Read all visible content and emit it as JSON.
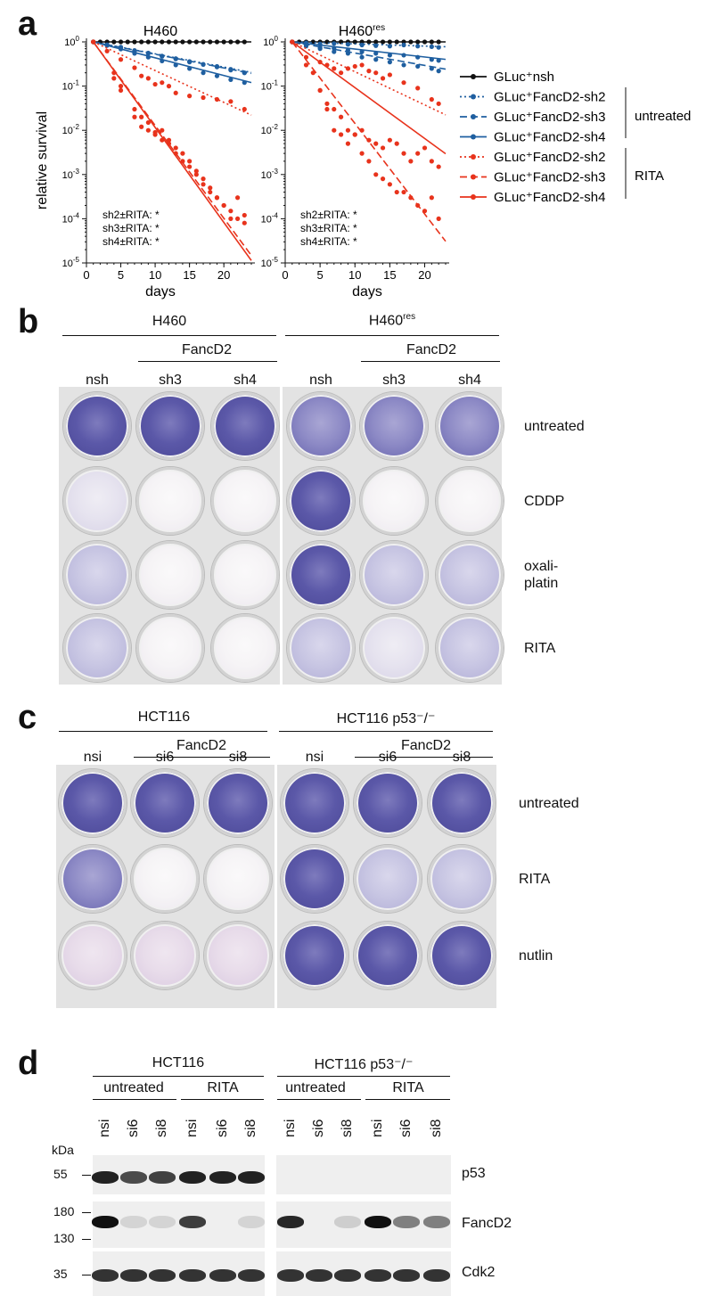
{
  "panels": {
    "a": "a",
    "b": "b",
    "c": "c",
    "d": "d"
  },
  "colors": {
    "black": "#111111",
    "blue": "#1f5fa0",
    "red": "#e8331c",
    "stain_dark": "#5a56a6",
    "stain_mid": "#8f8cc4",
    "stain_light": "#c9c7e2",
    "stain_faint": "#e6e3ee"
  },
  "panel_a": {
    "ylabel": "relative survival",
    "xlabel": "days",
    "yticks": [
      "10^0",
      "10^-1",
      "10^-2",
      "10^-3",
      "10^-4",
      "10^-5"
    ],
    "xticks": [
      "0",
      "5",
      "10",
      "15",
      "20"
    ],
    "stats": [
      "sh2±RITA: *",
      "sh3±RITA: *",
      "sh4±RITA: *"
    ],
    "legend": {
      "nsh": "GLuc⁺nsh",
      "untreated_sh2": "GLuc⁺FancD2-sh2",
      "untreated_sh3": "GLuc⁺FancD2-sh3",
      "untreated_sh4": "GLuc⁺FancD2-sh4",
      "rita_sh2": "GLuc⁺FancD2-sh2",
      "rita_sh3": "GLuc⁺FancD2-sh3",
      "rita_sh4": "GLuc⁺FancD2-sh4",
      "group_untreated": "untreated",
      "group_rita": "RITA"
    }
  },
  "chart_data": [
    {
      "type": "scatter",
      "title": "H460",
      "xlabel": "days",
      "ylabel": "relative survival",
      "xlim": [
        0,
        24
      ],
      "ylim": [
        1e-05,
        1
      ],
      "yscale": "log",
      "series": [
        {
          "name": "GLuc⁺nsh",
          "color": "#111111",
          "style": "solid",
          "slope": 0.0,
          "x": [
            1,
            2,
            3,
            4,
            5,
            6,
            7,
            8,
            9,
            10,
            11,
            12,
            13,
            14,
            15,
            16,
            17,
            18,
            19,
            20,
            21,
            22,
            23
          ],
          "y": [
            1,
            1,
            1,
            1,
            1,
            1,
            1,
            1,
            1,
            1,
            1,
            1,
            1,
            1,
            1,
            1,
            1,
            1,
            1,
            1,
            1,
            1,
            1
          ]
        },
        {
          "name": "GLuc⁺FancD2-sh2 untreated",
          "color": "#1f5fa0",
          "style": "dotted",
          "slope": -0.03,
          "x": [
            1,
            3,
            5,
            7,
            9,
            11,
            13,
            15,
            17,
            19,
            21,
            23
          ],
          "y": [
            1,
            0.85,
            0.76,
            0.62,
            0.56,
            0.48,
            0.42,
            0.36,
            0.31,
            0.28,
            0.24,
            0.2
          ]
        },
        {
          "name": "GLuc⁺FancD2-sh3 untreated",
          "color": "#1f5fa0",
          "style": "dashed",
          "slope": -0.031,
          "x": [
            1,
            3,
            5,
            7,
            9,
            11,
            13,
            15,
            17,
            19,
            21,
            23
          ],
          "y": [
            1,
            0.86,
            0.74,
            0.64,
            0.55,
            0.47,
            0.41,
            0.35,
            0.31,
            0.27,
            0.23,
            0.2
          ]
        },
        {
          "name": "GLuc⁺FancD2-sh4 untreated",
          "color": "#1f5fa0",
          "style": "solid",
          "slope": -0.04,
          "x": [
            1,
            3,
            5,
            7,
            9,
            11,
            13,
            15,
            17,
            19,
            21,
            23
          ],
          "y": [
            1,
            0.83,
            0.69,
            0.55,
            0.45,
            0.37,
            0.3,
            0.25,
            0.2,
            0.17,
            0.14,
            0.12
          ]
        },
        {
          "name": "GLuc⁺FancD2-sh2 RITA",
          "color": "#e8331c",
          "style": "dotted",
          "slope": -0.072,
          "x": [
            1,
            3,
            5,
            7,
            8,
            9,
            10,
            11,
            12,
            13,
            15,
            17,
            19,
            21,
            23
          ],
          "y": [
            1,
            0.62,
            0.4,
            0.26,
            0.17,
            0.15,
            0.11,
            0.12,
            0.1,
            0.07,
            0.06,
            0.055,
            0.05,
            0.045,
            0.03
          ]
        },
        {
          "name": "GLuc⁺FancD2-sh3 RITA",
          "color": "#e8331c",
          "style": "dashed",
          "slope": -0.21,
          "x": [
            1,
            4,
            5,
            7,
            8,
            9,
            10,
            11,
            12,
            13,
            14,
            15,
            16,
            17,
            18,
            19,
            20,
            21,
            22,
            23
          ],
          "y": [
            1,
            0.2,
            0.1,
            0.02,
            0.012,
            0.015,
            0.008,
            0.01,
            0.006,
            0.004,
            0.003,
            0.002,
            0.0012,
            0.0008,
            0.0005,
            0.0003,
            0.0002,
            0.00015,
            0.0001,
            0.00012
          ]
        },
        {
          "name": "GLuc⁺FancD2-sh4 RITA",
          "color": "#e8331c",
          "style": "solid",
          "slope": -0.215,
          "x": [
            1,
            4,
            5,
            7,
            8,
            9,
            10,
            11,
            12,
            13,
            14,
            15,
            16,
            17,
            18,
            19,
            20,
            21,
            22,
            23
          ],
          "y": [
            1,
            0.15,
            0.08,
            0.03,
            0.02,
            0.01,
            0.009,
            0.006,
            0.005,
            0.003,
            0.002,
            0.0015,
            0.001,
            0.0006,
            0.0004,
            0.0003,
            0.0002,
            0.0001,
            0.0003,
            8e-05
          ]
        }
      ]
    },
    {
      "type": "scatter",
      "title": "H460res",
      "xlabel": "days",
      "xlim": [
        0,
        23
      ],
      "ylim": [
        1e-05,
        1
      ],
      "yscale": "log",
      "series": [
        {
          "name": "GLuc⁺nsh",
          "color": "#111111",
          "style": "solid",
          "slope": 0.0,
          "x": [
            1,
            2,
            3,
            4,
            5,
            6,
            7,
            8,
            9,
            10,
            11,
            12,
            13,
            14,
            15,
            16,
            17,
            18,
            19,
            20,
            21,
            22
          ],
          "y": [
            1,
            1,
            1,
            1,
            1,
            1,
            1,
            1,
            1,
            1,
            1,
            1,
            1,
            1,
            1,
            1,
            1,
            1,
            1,
            1,
            1,
            1
          ]
        },
        {
          "name": "GLuc⁺FancD2-sh2 untreated",
          "color": "#1f5fa0",
          "style": "dotted",
          "slope": -0.005,
          "x": [
            1,
            3,
            5,
            7,
            9,
            11,
            13,
            15,
            17,
            19,
            21,
            22
          ],
          "y": [
            1,
            0.95,
            0.9,
            0.92,
            0.88,
            0.85,
            0.82,
            0.8,
            0.85,
            0.8,
            0.78,
            0.75
          ]
        },
        {
          "name": "GLuc⁺FancD2-sh3 untreated",
          "color": "#1f5fa0",
          "style": "dashed",
          "slope": -0.028,
          "x": [
            1,
            3,
            5,
            7,
            9,
            11,
            13,
            15,
            17,
            19,
            21,
            22
          ],
          "y": [
            1,
            0.8,
            0.7,
            0.6,
            0.55,
            0.45,
            0.4,
            0.35,
            0.3,
            0.28,
            0.25,
            0.22
          ]
        },
        {
          "name": "GLuc⁺FancD2-sh4 untreated",
          "color": "#1f5fa0",
          "style": "solid",
          "slope": -0.018,
          "x": [
            1,
            3,
            5,
            7,
            9,
            11,
            13,
            15,
            17,
            19,
            21,
            22
          ],
          "y": [
            1,
            0.85,
            0.75,
            0.72,
            0.65,
            0.6,
            0.55,
            0.5,
            0.5,
            0.45,
            0.4,
            0.38
          ]
        },
        {
          "name": "GLuc⁺FancD2-sh2 RITA",
          "color": "#e8331c",
          "style": "dotted",
          "slope": -0.075,
          "x": [
            1,
            3,
            5,
            6,
            7,
            8,
            9,
            10,
            11,
            12,
            13,
            14,
            15,
            17,
            19,
            21,
            22
          ],
          "y": [
            1,
            0.45,
            0.35,
            0.3,
            0.25,
            0.2,
            0.25,
            0.28,
            0.3,
            0.22,
            0.2,
            0.15,
            0.18,
            0.12,
            0.09,
            0.05,
            0.04
          ]
        },
        {
          "name": "GLuc⁺FancD2-sh3 RITA",
          "color": "#e8331c",
          "style": "dashed",
          "slope": -0.205,
          "x": [
            1,
            4,
            5,
            6,
            7,
            8,
            9,
            10,
            11,
            12,
            13,
            14,
            15,
            16,
            17,
            18,
            19,
            20,
            21,
            22
          ],
          "y": [
            1,
            0.2,
            0.08,
            0.03,
            0.01,
            0.008,
            0.005,
            0.008,
            0.003,
            0.002,
            0.001,
            0.0008,
            0.0006,
            0.0004,
            0.0004,
            0.0003,
            0.0002,
            0.00015,
            0.0003,
            0.0001
          ]
        },
        {
          "name": "GLuc⁺FancD2-sh4 RITA",
          "color": "#e8331c",
          "style": "solid",
          "slope": -0.115,
          "x": [
            1,
            3,
            5,
            6,
            7,
            8,
            9,
            10,
            11,
            12,
            13,
            14,
            15,
            16,
            17,
            18,
            19,
            20,
            21,
            22
          ],
          "y": [
            1,
            0.3,
            0.08,
            0.04,
            0.03,
            0.02,
            0.01,
            0.008,
            0.01,
            0.006,
            0.005,
            0.004,
            0.006,
            0.005,
            0.003,
            0.002,
            0.003,
            0.004,
            0.002,
            0.0015
          ]
        }
      ]
    }
  ],
  "panel_b": {
    "left_title": "H460",
    "right_title_base": "H460",
    "right_title_sup": "res",
    "fancd2": "FancD2",
    "cols": [
      "nsh",
      "sh3",
      "sh4",
      "nsh",
      "sh3",
      "sh4"
    ],
    "rows": [
      "untreated",
      "CDDP",
      "oxali-\nplatin",
      "RITA"
    ],
    "stain": [
      [
        "dark",
        "dark",
        "dark",
        "mid",
        "mid",
        "mid"
      ],
      [
        "faint",
        "empty",
        "empty",
        "dark",
        "empty",
        "empty"
      ],
      [
        "light",
        "empty",
        "empty",
        "dark",
        "light",
        "light"
      ],
      [
        "light",
        "empty",
        "empty",
        "light",
        "faint",
        "light"
      ]
    ]
  },
  "panel_c": {
    "left_title": "HCT116",
    "right_title": "HCT116 p53⁻/⁻",
    "fancd2": "FancD2",
    "cols": [
      "nsi",
      "si6",
      "si8",
      "nsi",
      "si6",
      "si8"
    ],
    "rows": [
      "untreated",
      "RITA",
      "nutlin"
    ],
    "stain": [
      [
        "dark",
        "dark",
        "dark",
        "dark",
        "dark",
        "dark"
      ],
      [
        "mid",
        "empty",
        "empty",
        "dark",
        "light",
        "light"
      ],
      [
        "pink",
        "pink",
        "pink",
        "dark",
        "dark",
        "dark"
      ]
    ]
  },
  "panel_d": {
    "left_title": "HCT116",
    "right_title": "HCT116 p53⁻/⁻",
    "groups": [
      "untreated",
      "RITA",
      "untreated",
      "RITA"
    ],
    "lanes": [
      "nsi",
      "si6",
      "si8",
      "nsi",
      "si6",
      "si8",
      "nsi",
      "si6",
      "si8",
      "nsi",
      "si6",
      "si8"
    ],
    "kda": "kDa",
    "markers": [
      "55",
      "180",
      "130",
      "35"
    ],
    "proteins": [
      "p53",
      "FancD2",
      "Cdk2"
    ],
    "p53": [
      1,
      0.8,
      0.85,
      1,
      1,
      1,
      0,
      0,
      0,
      0,
      0,
      0
    ],
    "fancd2": [
      1,
      0.1,
      0.1,
      0.8,
      0,
      0.05,
      0.9,
      0,
      0.15,
      1,
      0.5,
      0.5
    ],
    "cdk2": [
      1,
      1,
      1,
      1,
      1,
      1,
      1,
      1,
      1,
      1,
      1,
      1
    ]
  }
}
